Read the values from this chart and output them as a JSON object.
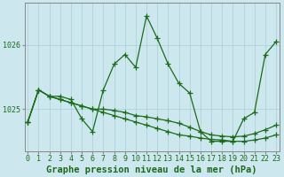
{
  "xlabel": "Graphe pression niveau de la mer (hPa)",
  "background_color": "#cce8ee",
  "grid_color": "#aacdd6",
  "line_color": "#1a6b1a",
  "x_ticks": [
    0,
    1,
    2,
    3,
    4,
    5,
    6,
    7,
    8,
    9,
    10,
    11,
    12,
    13,
    14,
    15,
    16,
    17,
    18,
    19,
    20,
    21,
    22,
    23
  ],
  "y_ticks": [
    1025,
    1026
  ],
  "ylim": [
    1024.35,
    1026.65
  ],
  "xlim": [
    -0.3,
    23.3
  ],
  "series": [
    [
      1024.8,
      1025.3,
      1025.2,
      1025.2,
      1025.15,
      1024.85,
      1024.65,
      1025.3,
      1025.7,
      1025.85,
      1025.65,
      1026.45,
      1026.1,
      1025.7,
      1025.4,
      1025.25,
      1024.65,
      1024.5,
      1024.5,
      1024.5,
      1024.85,
      1024.95,
      1025.85,
      1026.05
    ],
    [
      1024.8,
      1025.3,
      1025.2,
      1025.15,
      1025.1,
      1025.05,
      1025.0,
      1024.95,
      1024.9,
      1024.85,
      1024.8,
      1024.75,
      1024.7,
      1024.65,
      1024.6,
      1024.58,
      1024.55,
      1024.53,
      1024.52,
      1024.5,
      1024.5,
      1024.52,
      1024.55,
      1024.6
    ],
    [
      1024.8,
      1025.3,
      1025.2,
      1025.15,
      1025.1,
      1025.05,
      1025.0,
      1025.0,
      1024.98,
      1024.95,
      1024.9,
      1024.88,
      1024.85,
      1024.82,
      1024.78,
      1024.72,
      1024.65,
      1024.6,
      1024.58,
      1024.57,
      1024.58,
      1024.62,
      1024.68,
      1024.75
    ]
  ],
  "marker_size": 4,
  "linewidth": 0.9,
  "xlabel_fontsize": 7.5,
  "tick_fontsize": 6.0,
  "axis_label_color": "#1a6b1a"
}
